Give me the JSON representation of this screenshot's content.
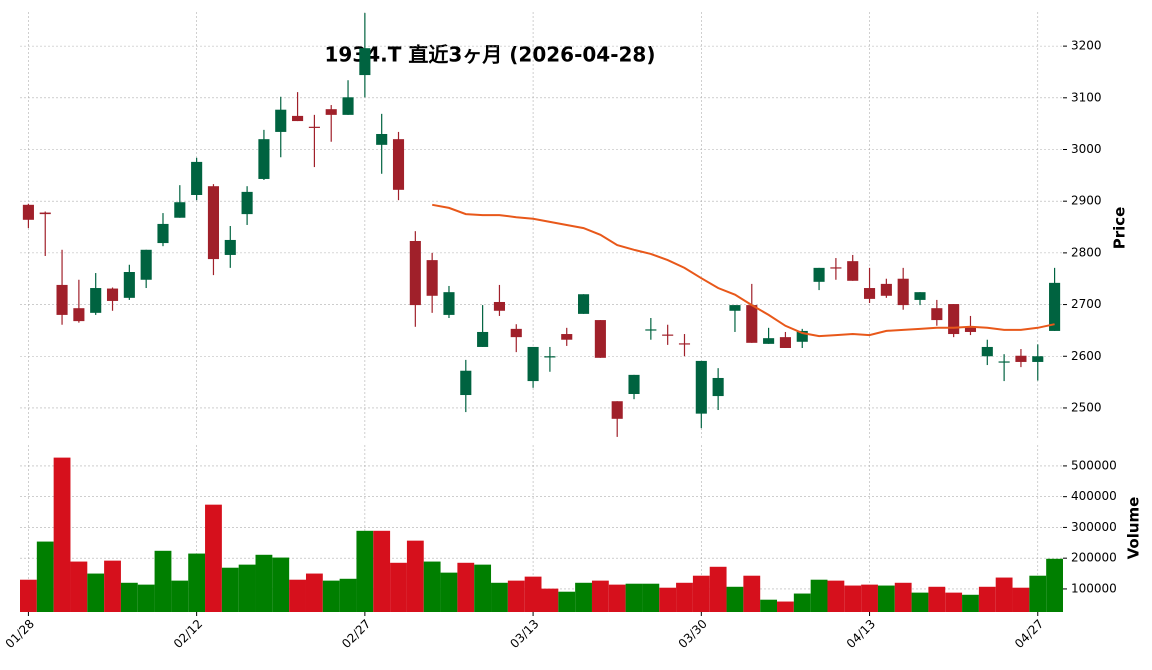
{
  "chart_data": {
    "type": "candlestick",
    "title": "1934.T  直近3ヶ月  (2026-04-28)",
    "ylabel": "Price",
    "grid": true,
    "up_color": "#006340",
    "down_color": "#a0202a",
    "categories": [
      "01/28",
      null,
      null,
      null,
      null,
      null,
      null,
      null,
      null,
      null,
      "02/12",
      null,
      null,
      null,
      null,
      null,
      null,
      null,
      null,
      null,
      "02/27",
      null,
      null,
      null,
      null,
      null,
      null,
      null,
      null,
      null,
      "03/13",
      null,
      null,
      null,
      null,
      null,
      null,
      null,
      null,
      null,
      "03/30",
      null,
      null,
      null,
      null,
      null,
      null,
      null,
      null,
      null,
      "04/13",
      null,
      null,
      null,
      null,
      null,
      null,
      null,
      null,
      null,
      "04/27",
      null
    ],
    "open": [
      2893,
      2878,
      2738,
      2693,
      2684,
      2731,
      2713,
      2748,
      2819,
      2868,
      2912,
      2929,
      2796,
      2875,
      2943,
      3034,
      3065,
      3044,
      3078,
      3067,
      3144,
      3009,
      3020,
      2823,
      2786,
      2680,
      2525,
      2618,
      2705,
      2653,
      2552,
      2598,
      2643,
      2682,
      2670,
      2513,
      2527,
      2650,
      2642,
      2625,
      2489,
      2523,
      2688,
      2699,
      2624,
      2637,
      2628,
      2744,
      2772,
      2784,
      2732,
      2740,
      2750,
      2709,
      2693,
      2701,
      2657,
      2600,
      2588,
      2601,
      2589,
      2649
    ],
    "high": [
      2895,
      2880,
      2806,
      2748,
      2761,
      2733,
      2777,
      2806,
      2877,
      2931,
      2984,
      2933,
      2852,
      2929,
      3038,
      3102,
      3111,
      3067,
      3086,
      3134,
      3264,
      3069,
      3034,
      2842,
      2800,
      2736,
      2593,
      2699,
      2738,
      2662,
      2618,
      2618,
      2655,
      2720,
      2670,
      2513,
      2564,
      2674,
      2661,
      2643,
      2591,
      2577,
      2699,
      2740,
      2655,
      2647,
      2653,
      2771,
      2790,
      2796,
      2771,
      2750,
      2771,
      2724,
      2709,
      2701,
      2678,
      2632,
      2604,
      2614,
      2623,
      2771
    ],
    "low": [
      2848,
      2794,
      2661,
      2665,
      2680,
      2688,
      2709,
      2732,
      2813,
      2868,
      2902,
      2757,
      2771,
      2854,
      2941,
      2985,
      3055,
      2966,
      3015,
      3067,
      3101,
      2953,
      2902,
      2657,
      2684,
      2674,
      2492,
      2618,
      2678,
      2608,
      2539,
      2570,
      2620,
      2682,
      2597,
      2444,
      2517,
      2632,
      2622,
      2600,
      2461,
      2496,
      2647,
      2626,
      2624,
      2616,
      2616,
      2728,
      2748,
      2746,
      2703,
      2713,
      2690,
      2699,
      2659,
      2637,
      2641,
      2583,
      2552,
      2579,
      2553,
      2649
    ],
    "close": [
      2864,
      2875,
      2680,
      2668,
      2732,
      2707,
      2763,
      2806,
      2856,
      2898,
      2976,
      2788,
      2825,
      2918,
      3020,
      3077,
      3055,
      3042,
      3067,
      3101,
      3196,
      3030,
      2922,
      2699,
      2717,
      2724,
      2572,
      2647,
      2688,
      2637,
      2618,
      2600,
      2632,
      2720,
      2597,
      2479,
      2564,
      2652,
      2640,
      2623,
      2591,
      2558,
      2699,
      2626,
      2635,
      2616,
      2649,
      2771,
      2770,
      2746,
      2711,
      2717,
      2699,
      2724,
      2670,
      2643,
      2647,
      2618,
      2590,
      2589,
      2600,
      2742
    ],
    "ylim": [
      2438,
      3266
    ],
    "yticks": [
      2500,
      2600,
      2700,
      2800,
      2900,
      3000,
      3100,
      3200
    ],
    "ma": {
      "color": "#e8581a",
      "values": [
        null,
        null,
        null,
        null,
        null,
        null,
        null,
        null,
        null,
        null,
        null,
        null,
        null,
        null,
        null,
        null,
        null,
        null,
        null,
        null,
        null,
        null,
        null,
        null,
        2893,
        2887,
        2875,
        2873,
        2873,
        2869,
        2866,
        2860,
        2854,
        2848,
        2835,
        2815,
        2806,
        2798,
        2786,
        2771,
        2751,
        2732,
        2719,
        2699,
        2680,
        2659,
        2645,
        2639,
        2641,
        2643,
        2641,
        2649,
        2651,
        2653,
        2655,
        2655,
        2657,
        2655,
        2651,
        2651,
        2655,
        2662
      ]
    },
    "volume": {
      "ylabel": "Volume",
      "values": [
        130000,
        254000,
        527000,
        189000,
        150000,
        192000,
        120000,
        114000,
        224000,
        127000,
        215000,
        374000,
        169000,
        179000,
        211000,
        202000,
        130000,
        150000,
        127000,
        133000,
        289000,
        289000,
        185000,
        257000,
        189000,
        153000,
        185000,
        179000,
        120000,
        127000,
        140000,
        101000,
        91000,
        120000,
        127000,
        114000,
        117000,
        117000,
        104000,
        120000,
        143000,
        172000,
        107000,
        143000,
        65000,
        59000,
        85000,
        130000,
        127000,
        111000,
        114000,
        111000,
        120000,
        88000,
        107000,
        88000,
        81000,
        107000,
        137000,
        104000,
        143000,
        198000
      ],
      "colors": [
        "#d6101c",
        "#007f00",
        "#d6101c",
        "#d6101c",
        "#007f00",
        "#d6101c",
        "#007f00",
        "#007f00",
        "#007f00",
        "#007f00",
        "#007f00",
        "#d6101c",
        "#007f00",
        "#007f00",
        "#007f00",
        "#007f00",
        "#d6101c",
        "#d6101c",
        "#007f00",
        "#007f00",
        "#007f00",
        "#d6101c",
        "#d6101c",
        "#d6101c",
        "#007f00",
        "#007f00",
        "#d6101c",
        "#007f00",
        "#007f00",
        "#d6101c",
        "#d6101c",
        "#d6101c",
        "#007f00",
        "#007f00",
        "#d6101c",
        "#d6101c",
        "#007f00",
        "#007f00",
        "#d6101c",
        "#d6101c",
        "#d6101c",
        "#d6101c",
        "#007f00",
        "#d6101c",
        "#007f00",
        "#d6101c",
        "#007f00",
        "#007f00",
        "#d6101c",
        "#d6101c",
        "#d6101c",
        "#007f00",
        "#d6101c",
        "#007f00",
        "#d6101c",
        "#d6101c",
        "#007f00",
        "#d6101c",
        "#d6101c",
        "#d6101c",
        "#007f00",
        "#007f00"
      ],
      "ylim": [
        25000,
        568000
      ],
      "yticks": [
        100000,
        200000,
        300000,
        400000,
        500000
      ]
    }
  }
}
